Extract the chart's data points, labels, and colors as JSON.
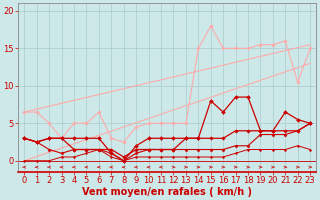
{
  "background_color": "#cce8e8",
  "grid_color": "#aacccc",
  "xlabel": "Vent moyen/en rafales ( km/h )",
  "xlabel_color": "#cc0000",
  "xlabel_fontsize": 7,
  "tick_color": "#cc0000",
  "tick_fontsize": 6,
  "xlim": [
    -0.5,
    23.5
  ],
  "ylim": [
    -1.5,
    21
  ],
  "yticks": [
    0,
    5,
    10,
    15,
    20
  ],
  "xticks": [
    0,
    1,
    2,
    3,
    4,
    5,
    6,
    7,
    8,
    9,
    10,
    11,
    12,
    13,
    14,
    15,
    16,
    17,
    18,
    19,
    20,
    21,
    22,
    23
  ],
  "series": [
    {
      "x": [
        0,
        23
      ],
      "y": [
        6.5,
        15.5
      ],
      "color": "#ffaaaa",
      "linewidth": 0.8,
      "marker": null
    },
    {
      "x": [
        0,
        23
      ],
      "y": [
        0.0,
        13.0
      ],
      "color": "#ffaaaa",
      "linewidth": 0.8,
      "marker": null
    },
    {
      "x": [
        0,
        1,
        2,
        3,
        4,
        5,
        6,
        7,
        8,
        9,
        10,
        11,
        12,
        13,
        14,
        15,
        16,
        17,
        18,
        19,
        20,
        21,
        22,
        23
      ],
      "y": [
        6.5,
        6.5,
        5.0,
        3.0,
        5.0,
        5.0,
        6.5,
        3.0,
        2.5,
        4.5,
        5.0,
        5.0,
        5.0,
        5.0,
        15.0,
        18.0,
        15.0,
        15.0,
        15.0,
        15.5,
        15.5,
        16.0,
        10.5,
        15.0
      ],
      "color": "#ffaaaa",
      "linewidth": 0.8,
      "marker": "D",
      "markersize": 1.8
    },
    {
      "x": [
        0,
        1,
        2,
        3,
        4,
        5,
        6,
        7,
        8,
        9,
        10,
        11,
        12,
        13,
        14,
        15,
        16,
        17,
        18,
        19,
        20,
        21,
        22,
        23
      ],
      "y": [
        3.0,
        2.5,
        3.0,
        3.0,
        3.0,
        3.0,
        3.0,
        1.0,
        0.0,
        2.0,
        3.0,
        3.0,
        3.0,
        3.0,
        3.0,
        8.0,
        6.5,
        8.5,
        8.5,
        4.0,
        4.0,
        6.5,
        5.5,
        5.0
      ],
      "color": "#cc0000",
      "linewidth": 0.9,
      "marker": "D",
      "markersize": 2.0
    },
    {
      "x": [
        0,
        1,
        2,
        3,
        4,
        5,
        6,
        7,
        8,
        9,
        10,
        11,
        12,
        13,
        14,
        15,
        16,
        17,
        18,
        19,
        20,
        21,
        22,
        23
      ],
      "y": [
        3.0,
        2.5,
        3.0,
        3.0,
        1.5,
        1.5,
        1.5,
        1.5,
        0.5,
        1.5,
        1.5,
        1.5,
        1.5,
        3.0,
        3.0,
        3.0,
        3.0,
        4.0,
        4.0,
        4.0,
        4.0,
        4.0,
        4.0,
        5.0
      ],
      "color": "#cc0000",
      "linewidth": 0.9,
      "marker": "D",
      "markersize": 1.8
    },
    {
      "x": [
        0,
        1,
        2,
        3,
        4,
        5,
        6,
        7,
        8,
        9,
        10,
        11,
        12,
        13,
        14,
        15,
        16,
        17,
        18,
        19,
        20,
        21,
        22,
        23
      ],
      "y": [
        3.0,
        2.5,
        1.5,
        1.0,
        1.5,
        1.5,
        1.5,
        1.0,
        0.0,
        1.0,
        1.5,
        1.5,
        1.5,
        1.5,
        1.5,
        1.5,
        1.5,
        2.0,
        2.0,
        3.5,
        3.5,
        3.5,
        4.0,
        5.0
      ],
      "color": "#cc0000",
      "linewidth": 0.8,
      "marker": "D",
      "markersize": 1.6
    },
    {
      "x": [
        0,
        1,
        2,
        3,
        4,
        5,
        6,
        7,
        8,
        9,
        10,
        11,
        12,
        13,
        14,
        15,
        16,
        17,
        18,
        19,
        20,
        21,
        22,
        23
      ],
      "y": [
        0,
        0,
        0,
        0.5,
        0.5,
        1.0,
        1.5,
        0.5,
        0.0,
        0.5,
        0.5,
        0.5,
        0.5,
        0.5,
        0.5,
        0.5,
        0.5,
        1.0,
        1.5,
        1.5,
        1.5,
        1.5,
        2.0,
        1.5
      ],
      "color": "#cc0000",
      "linewidth": 0.7,
      "marker": "D",
      "markersize": 1.3
    }
  ]
}
